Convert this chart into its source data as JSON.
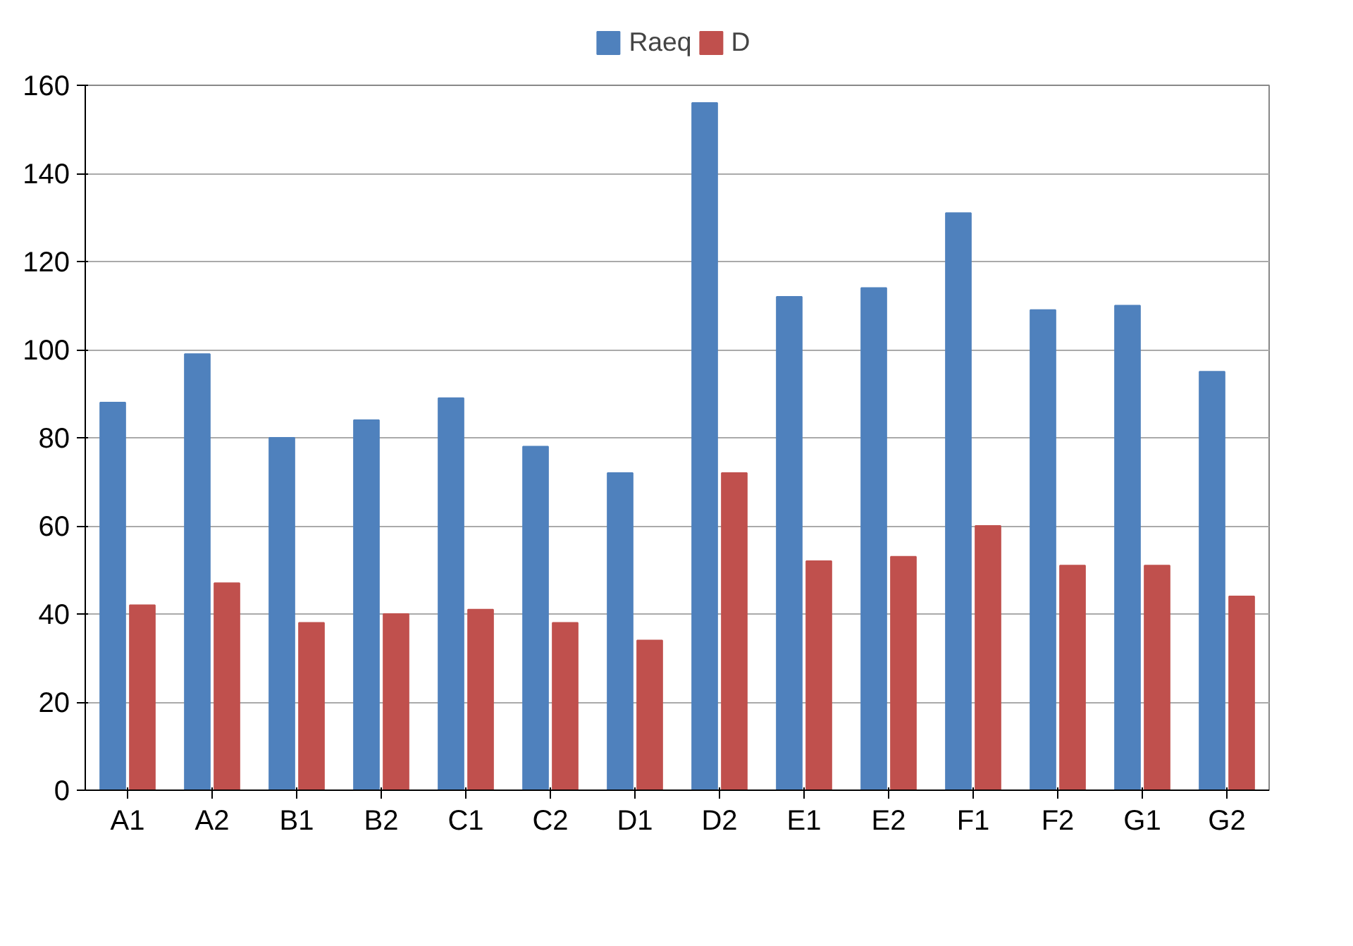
{
  "chart_data": {
    "type": "bar",
    "categories": [
      "A1",
      "A2",
      "B1",
      "B2",
      "C1",
      "C2",
      "D1",
      "D2",
      "E1",
      "E2",
      "F1",
      "F2",
      "G1",
      "G2"
    ],
    "series": [
      {
        "name": "Raeq",
        "color": "#4f81bd",
        "values": [
          88,
          99,
          80,
          84,
          89,
          78,
          72,
          156,
          112,
          114,
          131,
          109,
          110,
          95
        ]
      },
      {
        "name": "D",
        "color": "#c0504d",
        "values": [
          42,
          47,
          38,
          40,
          41,
          38,
          34,
          72,
          52,
          53,
          60,
          51,
          51,
          44
        ]
      }
    ],
    "ylim": [
      0,
      160
    ],
    "yticks": [
      0,
      20,
      40,
      60,
      80,
      100,
      120,
      140,
      160
    ],
    "grid": "y",
    "legend": "top"
  }
}
